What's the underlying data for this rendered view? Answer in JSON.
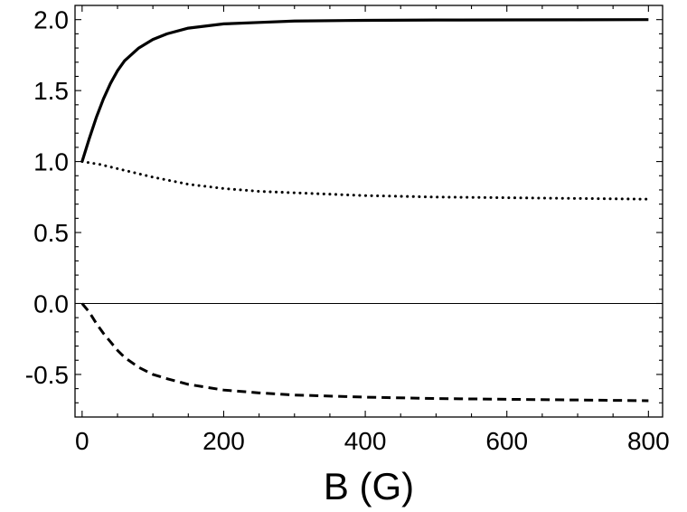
{
  "chart_data": {
    "type": "line",
    "title": "",
    "xlabel": "B (G)",
    "ylabel": "",
    "xlim": [
      -10,
      820
    ],
    "ylim": [
      -0.8,
      2.1
    ],
    "grid": false,
    "legend": "none",
    "x_ticks": [
      0,
      200,
      400,
      600,
      800
    ],
    "x_tick_labels": [
      "0",
      "200",
      "400",
      "600",
      "800"
    ],
    "y_ticks": [
      -0.5,
      0.0,
      0.5,
      1.0,
      1.5,
      2.0
    ],
    "y_tick_labels": [
      "-0.5",
      "0.0",
      "0.5",
      "1.0",
      "1.5",
      "2.0"
    ],
    "reference_lines": [
      {
        "y": 0.0,
        "color": "#000000"
      }
    ],
    "series": [
      {
        "style": "solid",
        "color": "#000000",
        "x": [
          0,
          10,
          20,
          30,
          40,
          50,
          60,
          80,
          100,
          120,
          150,
          200,
          250,
          300,
          400,
          500,
          600,
          700,
          800
        ],
        "y": [
          1.0,
          1.16,
          1.31,
          1.44,
          1.55,
          1.64,
          1.71,
          1.8,
          1.86,
          1.9,
          1.94,
          1.97,
          1.98,
          1.99,
          1.995,
          1.997,
          1.998,
          1.999,
          2.0
        ]
      },
      {
        "style": "dotted",
        "color": "#000000",
        "x": [
          0,
          25,
          50,
          75,
          100,
          150,
          200,
          250,
          300,
          400,
          500,
          600,
          700,
          800
        ],
        "y": [
          1.0,
          0.98,
          0.95,
          0.92,
          0.89,
          0.84,
          0.81,
          0.79,
          0.78,
          0.76,
          0.75,
          0.745,
          0.74,
          0.735
        ]
      },
      {
        "style": "dashed",
        "color": "#000000",
        "x": [
          0,
          10,
          20,
          30,
          40,
          50,
          60,
          80,
          100,
          120,
          150,
          200,
          250,
          300,
          400,
          500,
          600,
          700,
          800
        ],
        "y": [
          0.0,
          -0.06,
          -0.14,
          -0.21,
          -0.27,
          -0.33,
          -0.38,
          -0.45,
          -0.5,
          -0.53,
          -0.57,
          -0.61,
          -0.63,
          -0.645,
          -0.66,
          -0.67,
          -0.675,
          -0.68,
          -0.685
        ]
      }
    ]
  }
}
